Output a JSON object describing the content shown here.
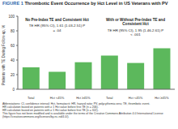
{
  "chart_data": {
    "type": "bar",
    "label": "FIGURE 1",
    "title": "Thrombotic Event Occurrence by Hct Level in US Veterans with PV",
    "y_label": "Patients with TE During Follow-up, %",
    "categories": [
      "Total (n = 213)",
      "Hct <45% (n = 104)",
      "Hct ≥45% (n = 109)",
      "Total (n = 342)",
      "Hct <45% (n = 165)",
      "Hct ≥45% (n = 177)"
    ],
    "values": [
      30,
      24,
      37,
      46,
      36,
      56
    ],
    "color": "#5cb85c",
    "ylim": [
      0,
      100
    ],
    "yticks": [
      0,
      20,
      40,
      60,
      80,
      100
    ],
    "grid": false,
    "groups": [
      "No Pre-Index TE and Consistent Hct",
      "With or Without Pre-Index TE and Consistent Hct"
    ],
    "annotations": [
      "TE HR (95% CI), 1.61 (1.03-2.51) P = .04",
      "TE HR (95% CI), 1.95 (1.46-2.61) P < .001"
    ],
    "footnotes": [
      "Abbreviations: CI, confidence interval; Hct, hematocrit; HR, hazard ratio; PV, polycythemia vera; TE, thrombotic event.",
      "HR calculation based on patients with ≥ 1 Hct value before first TE (n = 206).",
      "HR calculation based on patients with ≥ 1 Hct value before first TE (n = 322).",
      "This figure has not been modified and is available under the terms of the Creative Commons Attribution 4.0 International License (https://creativecommons.org/licenses/by-nc-nd/4.0/)."
    ]
  }
}
